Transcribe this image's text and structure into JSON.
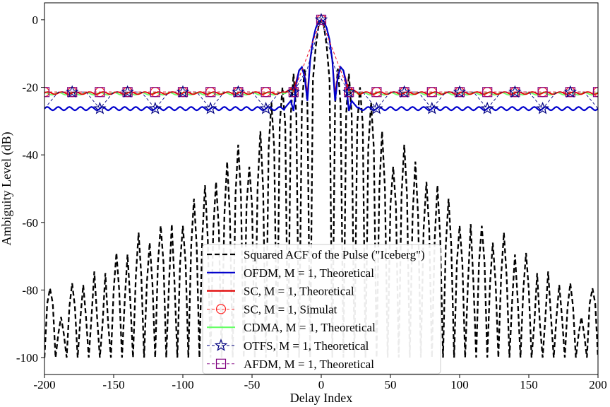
{
  "chart_data": {
    "type": "line",
    "xlabel": "Delay Index",
    "ylabel": "Ambiguity Level (dB)",
    "xlim": [
      -200,
      200
    ],
    "ylim": [
      -105,
      5
    ],
    "xticks": [
      -200,
      -150,
      -100,
      -50,
      0,
      50,
      100,
      150,
      200
    ],
    "yticks": [
      0,
      -20,
      -40,
      -60,
      -80,
      -100
    ],
    "grid": false,
    "legend_position": "bottom-center",
    "colors": {
      "iceberg": "#000000",
      "ofdm": "#0000cc",
      "sc": "#e00000",
      "sc_sim": "#ff2020",
      "cdma": "#66ff66",
      "otfs": "#000080",
      "afdm": "#800080"
    },
    "series": [
      {
        "name": "Squared ACF of the Pulse (\"Iceberg\")",
        "key": "iceberg",
        "style": "dashed",
        "x": [
          -200,
          -198,
          -196,
          -194,
          -192,
          -190,
          -188,
          -186,
          -184,
          -182,
          -180,
          -178,
          -176,
          -174,
          -172,
          -170,
          -168,
          -166,
          -164,
          -162,
          -160,
          -158,
          -156,
          -154,
          -152,
          -150,
          -148,
          -146,
          -144,
          -142,
          -140,
          -138,
          -136,
          -134,
          -132,
          -130,
          -128,
          -126,
          -124,
          -122,
          -120,
          -118,
          -116,
          -114,
          -112,
          -110,
          -108,
          -106,
          -104,
          -102,
          -100,
          -98,
          -96,
          -94,
          -92,
          -90,
          -88,
          -86,
          -84,
          -82,
          -80,
          -78,
          -76,
          -74,
          -72,
          -70,
          -68,
          -66,
          -64,
          -62,
          -60,
          -58,
          -56,
          -54,
          -52,
          -50,
          -48,
          -46,
          -44,
          -42,
          -40,
          -38,
          -36,
          -34,
          -32,
          -30,
          -28,
          -26,
          -24,
          -22,
          -20,
          -18,
          -16,
          -14,
          -12,
          -10,
          -8,
          -6,
          -4,
          -2,
          0,
          2,
          4,
          6,
          8,
          10,
          12,
          14,
          16,
          18,
          20,
          22,
          24,
          26,
          28,
          30,
          32,
          34,
          36,
          38,
          40,
          42,
          44,
          46,
          48,
          50,
          52,
          54,
          56,
          58,
          60,
          62,
          64,
          66,
          68,
          70,
          72,
          74,
          76,
          78,
          80,
          82,
          84,
          86,
          88,
          90,
          92,
          94,
          96,
          98,
          100,
          102,
          104,
          106,
          108,
          110,
          112,
          114,
          116,
          118,
          120,
          122,
          124,
          126,
          128,
          130,
          132,
          134,
          136,
          138,
          140,
          142,
          144,
          146,
          148,
          150,
          152,
          154,
          156,
          158,
          160,
          162,
          164,
          166,
          168,
          170,
          172,
          174,
          176,
          178,
          180,
          182,
          184,
          186,
          188,
          190,
          192,
          194,
          196,
          198,
          200
        ],
        "y": [
          -100,
          -84,
          -79.5,
          -84,
          -100,
          -93,
          -88,
          -93,
          -100,
          -85,
          -78,
          -85,
          -100,
          -88,
          -78.5,
          -88,
          -100,
          -88,
          -74.5,
          -88,
          -100,
          -90,
          -75,
          -90,
          -100,
          -80,
          -69,
          -80,
          -100,
          -83,
          -69.5,
          -83,
          -100,
          -76,
          -63,
          -76,
          -100,
          -78,
          -66,
          -78,
          -100,
          -72,
          -61,
          -72,
          -100,
          -78,
          -60.5,
          -78,
          -100,
          -72,
          -61,
          -72,
          -100,
          -67,
          -53,
          -67,
          -100,
          -65,
          -49,
          -65,
          -100,
          -62,
          -48,
          -62,
          -100,
          -58,
          -42,
          -58,
          -100,
          -52,
          -37,
          -52,
          -100,
          -55,
          -43.5,
          -55,
          -100,
          -50,
          -33,
          -50,
          -100,
          -38,
          -24.5,
          -38,
          -100,
          -31,
          -20,
          -31,
          -100,
          -28,
          -16,
          -28,
          -100,
          -25,
          -14.5,
          -25,
          -100,
          -18,
          -8,
          -2,
          0,
          -2,
          -8,
          -18,
          -100,
          -25,
          -14.5,
          -25,
          -100,
          -28,
          -16,
          -28,
          -100,
          -31,
          -20,
          -31,
          -100,
          -38,
          -24.5,
          -38,
          -100,
          -50,
          -33,
          -50,
          -100,
          -55,
          -43.5,
          -55,
          -100,
          -52,
          -37,
          -52,
          -100,
          -58,
          -42,
          -58,
          -100,
          -62,
          -48,
          -62,
          -100,
          -65,
          -49,
          -65,
          -100,
          -67,
          -53,
          -67,
          -100,
          -72,
          -61,
          -72,
          -100,
          -78,
          -60.5,
          -78,
          -100,
          -72,
          -61,
          -72,
          -100,
          -78,
          -66,
          -78,
          -100,
          -76,
          -63,
          -76,
          -100,
          -83,
          -69.5,
          -83,
          -100,
          -80,
          -69,
          -80,
          -100,
          -90,
          -75,
          -90,
          -100,
          -88,
          -74.5,
          -88,
          -100,
          -88,
          -78.5,
          -88,
          -100,
          -85,
          -78,
          -85,
          -100,
          -93,
          -88,
          -93,
          -100,
          -84,
          -79.5,
          -84,
          -100
        ]
      },
      {
        "name": "OFDM, M = 1, Theoretical",
        "key": "ofdm",
        "style": "solid",
        "floor": -26.3,
        "x": [
          -26,
          -22,
          -20,
          -18,
          -16,
          -14,
          -12,
          -10,
          -8,
          -6,
          -4,
          -2,
          0,
          2,
          4,
          6,
          8,
          10,
          12,
          14,
          16,
          18,
          20,
          22,
          26
        ],
        "y": [
          -26,
          -24,
          -27,
          -19,
          -15,
          -14,
          -17,
          -24,
          -12,
          -6,
          -2.5,
          -0.6,
          0,
          -0.6,
          -2.5,
          -6,
          -12,
          -24,
          -17,
          -14,
          -15,
          -19,
          -27,
          -24,
          -26
        ]
      },
      {
        "name": "SC, M = 1, Theoretical",
        "key": "sc",
        "style": "solid",
        "floor": -21.7,
        "x": [
          -26,
          -22,
          -20,
          -18,
          -16,
          -14,
          -12,
          -10,
          -8,
          -6,
          -4,
          -2,
          0,
          2,
          4,
          6,
          8,
          10,
          12,
          14,
          16,
          18,
          20,
          22,
          26
        ],
        "y": [
          -21.5,
          -20.5,
          -21,
          -18,
          -15,
          -14,
          -16.5,
          -22,
          -12,
          -6,
          -2.5,
          -0.6,
          0,
          -0.6,
          -2.5,
          -6,
          -12,
          -22,
          -16.5,
          -14,
          -15,
          -18,
          -21,
          -20.5,
          -21.5
        ]
      },
      {
        "name": "SC, M = 1, Simulat",
        "key": "sc_sim",
        "style": "dashed",
        "marker": "circle",
        "x": [
          -200,
          -180,
          -160,
          -140,
          -120,
          -100,
          -80,
          -60,
          -40,
          -20,
          0,
          20,
          40,
          60,
          80,
          100,
          120,
          140,
          160,
          180,
          200
        ],
        "y": [
          -21.4,
          -21.4,
          -21.4,
          -21.4,
          -21.4,
          -21.4,
          -21.4,
          -21.4,
          -21.4,
          -21.4,
          0,
          -21.4,
          -21.4,
          -21.4,
          -21.4,
          -21.4,
          -21.4,
          -21.4,
          -21.4,
          -21.4,
          -21.4
        ]
      },
      {
        "name": "CDMA, M = 1, Theoretical",
        "key": "cdma",
        "style": "solid",
        "floor": -21.9,
        "x": [
          -26,
          -22,
          -20,
          -18,
          -16,
          -14,
          -12,
          -10,
          -8,
          -6,
          -4,
          -2,
          0,
          2,
          4,
          6,
          8,
          10,
          12,
          14,
          16,
          18,
          20,
          22,
          26
        ],
        "y": [
          -21.8,
          -20.8,
          -21.3,
          -18.2,
          -15.2,
          -14.2,
          -16.7,
          -22.2,
          -12.2,
          -6.2,
          -2.6,
          -0.7,
          0,
          -0.7,
          -2.6,
          -6.2,
          -12.2,
          -22.2,
          -16.7,
          -14.2,
          -15.2,
          -18.2,
          -21.3,
          -20.8,
          -21.8
        ]
      },
      {
        "name": "OTFS, M = 1, Theoretical",
        "key": "otfs",
        "style": "dashed",
        "marker": "star",
        "x": [
          -200,
          -190,
          -180,
          -170,
          -160,
          -150,
          -140,
          -130,
          -120,
          -110,
          -100,
          -90,
          -80,
          -70,
          -60,
          -50,
          -40,
          -30,
          -20,
          -10,
          0,
          10,
          20,
          30,
          40,
          50,
          60,
          70,
          80,
          90,
          100,
          110,
          120,
          130,
          140,
          150,
          160,
          170,
          180,
          190,
          200
        ],
        "y": [
          -26.3,
          -21.4,
          -21.4,
          -21.4,
          -26.3,
          -21.4,
          -21.4,
          -21.4,
          -26.3,
          -21.4,
          -21.4,
          -21.4,
          -26.3,
          -21.4,
          -21.4,
          -21.4,
          -26.3,
          -21.4,
          -21.4,
          -14.5,
          0,
          -14.5,
          -21.4,
          -21.4,
          -26.3,
          -21.4,
          -21.4,
          -21.4,
          -26.3,
          -21.4,
          -21.4,
          -21.4,
          -26.3,
          -21.4,
          -21.4,
          -21.4,
          -26.3,
          -21.4,
          -21.4,
          -21.4,
          -26.3
        ],
        "marker_x": [
          -180,
          -160,
          -140,
          -120,
          -100,
          -80,
          -60,
          -40,
          -20,
          0,
          20,
          40,
          60,
          80,
          100,
          120,
          140,
          160,
          180
        ],
        "marker_y": [
          -21.4,
          -26.3,
          -21.4,
          -26.3,
          -21.4,
          -26.3,
          -21.4,
          -26.3,
          -21.4,
          0,
          -21.4,
          -26.3,
          -21.4,
          -26.3,
          -21.4,
          -26.3,
          -21.4,
          -26.3,
          -21.4
        ]
      },
      {
        "name": "AFDM, M = 1, Theoretical",
        "key": "afdm",
        "style": "dashed",
        "marker": "square",
        "x": [
          -200,
          -180,
          -160,
          -140,
          -120,
          -100,
          -80,
          -60,
          -40,
          -20,
          0,
          20,
          40,
          60,
          80,
          100,
          120,
          140,
          160,
          180,
          200
        ],
        "y": [
          -21.4,
          -21.4,
          -21.4,
          -21.4,
          -21.4,
          -21.4,
          -21.4,
          -21.4,
          -21.4,
          -21.4,
          0,
          -21.4,
          -21.4,
          -21.4,
          -21.4,
          -21.4,
          -21.4,
          -21.4,
          -21.4,
          -21.4,
          -21.4
        ]
      }
    ]
  }
}
